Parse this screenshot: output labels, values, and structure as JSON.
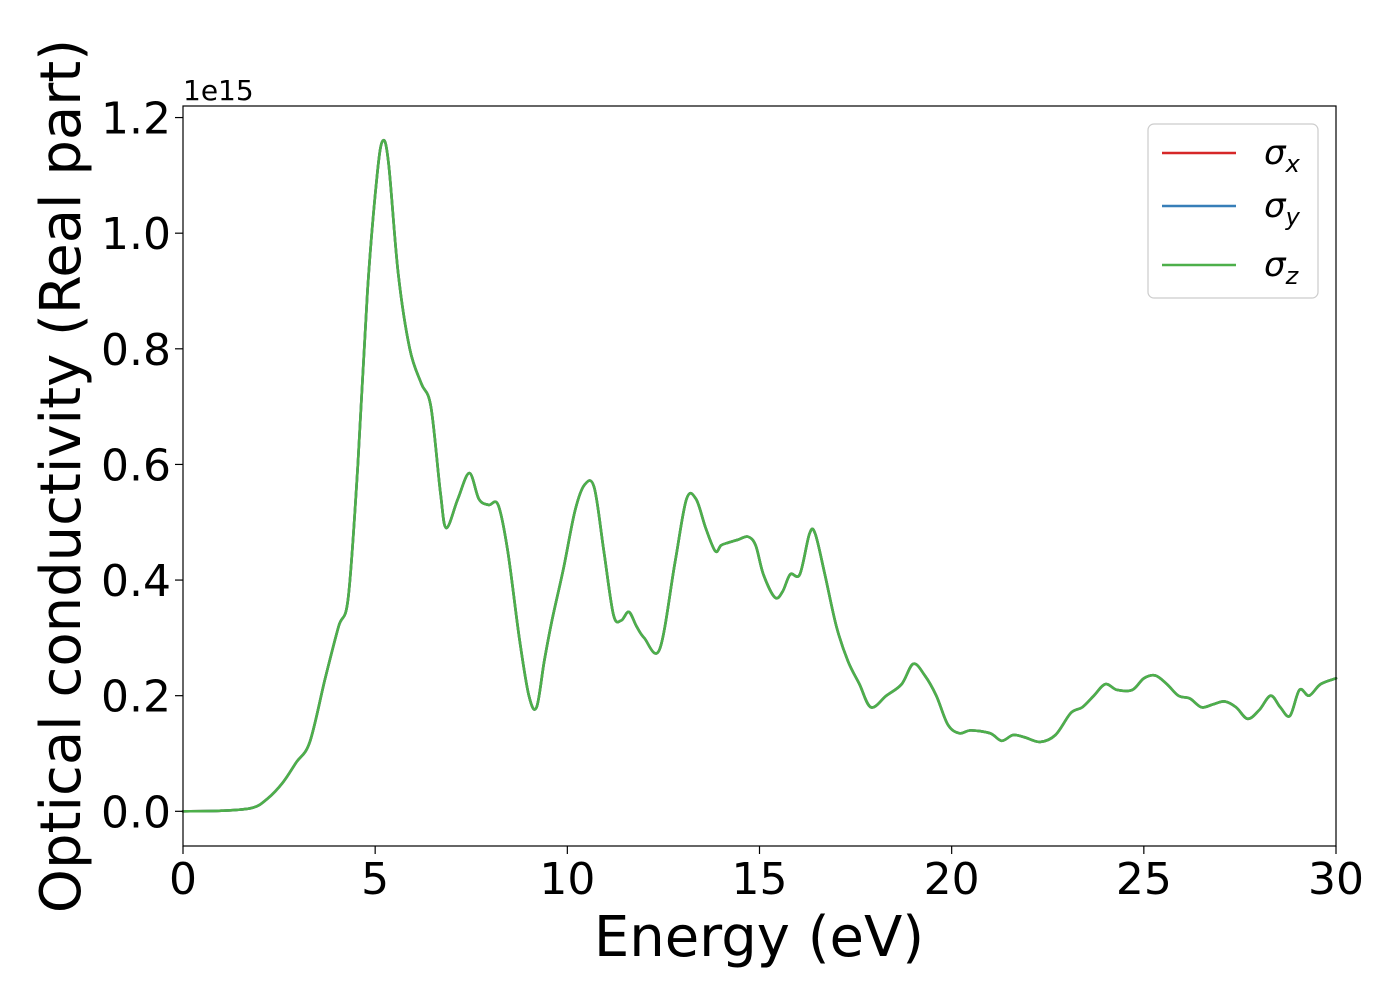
{
  "chart_data": {
    "type": "line",
    "xlabel": "Energy (eV)",
    "ylabel": "Optical conductivity (Real part)",
    "y_offset_label": "1e15",
    "xlim": [
      0,
      30
    ],
    "ylim": [
      -0.06,
      1.22
    ],
    "x_ticks": [
      0,
      5,
      10,
      15,
      20,
      25,
      30
    ],
    "x_tick_labels": [
      "0",
      "5",
      "10",
      "15",
      "20",
      "25",
      "30"
    ],
    "y_ticks": [
      0.0,
      0.2,
      0.4,
      0.6,
      0.8,
      1.0,
      1.2
    ],
    "y_tick_labels": [
      "0.0",
      "0.2",
      "0.4",
      "0.6",
      "0.8",
      "1.0",
      "1.2"
    ],
    "grid": false,
    "legend_position": "top-right",
    "x": [
      0,
      1,
      1.8,
      2.2,
      2.6,
      2.95,
      3.3,
      3.7,
      4.05,
      4.3,
      4.55,
      4.8,
      5.05,
      5.2,
      5.35,
      5.6,
      5.9,
      6.2,
      6.45,
      6.7,
      6.85,
      7.15,
      7.45,
      7.7,
      7.95,
      8.2,
      8.45,
      8.75,
      9.0,
      9.2,
      9.4,
      9.6,
      9.9,
      10.2,
      10.45,
      10.7,
      10.95,
      11.2,
      11.4,
      11.6,
      11.8,
      12.0,
      12.4,
      12.8,
      13.1,
      13.35,
      13.6,
      13.85,
      14.0,
      14.2,
      14.45,
      14.7,
      14.9,
      15.1,
      15.4,
      15.6,
      15.8,
      16.05,
      16.3,
      16.45,
      16.7,
      17.0,
      17.3,
      17.6,
      17.9,
      18.3,
      18.7,
      19.0,
      19.3,
      19.6,
      19.9,
      20.2,
      20.5,
      21.0,
      21.3,
      21.6,
      21.9,
      22.3,
      22.7,
      23.1,
      23.4,
      23.7,
      24.0,
      24.3,
      24.7,
      25.0,
      25.3,
      25.6,
      25.9,
      26.2,
      26.5,
      26.8,
      27.1,
      27.4,
      27.7,
      28.0,
      28.3,
      28.55,
      28.8,
      29.05,
      29.3,
      29.6,
      30.0
    ],
    "series": [
      {
        "name": "σx",
        "color": "#d62728",
        "values": [
          0.0,
          0.001,
          0.006,
          0.022,
          0.05,
          0.085,
          0.12,
          0.23,
          0.32,
          0.37,
          0.6,
          0.9,
          1.1,
          1.16,
          1.12,
          0.93,
          0.8,
          0.74,
          0.7,
          0.55,
          0.49,
          0.54,
          0.585,
          0.54,
          0.53,
          0.53,
          0.45,
          0.3,
          0.2,
          0.18,
          0.26,
          0.33,
          0.42,
          0.52,
          0.565,
          0.56,
          0.45,
          0.34,
          0.33,
          0.345,
          0.32,
          0.3,
          0.28,
          0.43,
          0.54,
          0.54,
          0.49,
          0.45,
          0.46,
          0.465,
          0.47,
          0.475,
          0.46,
          0.41,
          0.37,
          0.38,
          0.41,
          0.41,
          0.48,
          0.48,
          0.41,
          0.32,
          0.26,
          0.22,
          0.18,
          0.2,
          0.22,
          0.255,
          0.235,
          0.2,
          0.15,
          0.135,
          0.14,
          0.135,
          0.122,
          0.132,
          0.128,
          0.12,
          0.132,
          0.17,
          0.18,
          0.2,
          0.22,
          0.21,
          0.21,
          0.23,
          0.235,
          0.22,
          0.2,
          0.195,
          0.18,
          0.185,
          0.19,
          0.18,
          0.16,
          0.175,
          0.2,
          0.18,
          0.165,
          0.21,
          0.2,
          0.22,
          0.23
        ]
      },
      {
        "name": "σy",
        "color": "#377eb8",
        "values": [
          0.0,
          0.001,
          0.006,
          0.022,
          0.05,
          0.085,
          0.12,
          0.23,
          0.32,
          0.37,
          0.6,
          0.9,
          1.1,
          1.16,
          1.12,
          0.93,
          0.8,
          0.74,
          0.7,
          0.55,
          0.49,
          0.54,
          0.585,
          0.54,
          0.53,
          0.53,
          0.45,
          0.3,
          0.2,
          0.18,
          0.26,
          0.33,
          0.42,
          0.52,
          0.565,
          0.56,
          0.45,
          0.34,
          0.33,
          0.345,
          0.32,
          0.3,
          0.28,
          0.43,
          0.54,
          0.54,
          0.49,
          0.45,
          0.46,
          0.465,
          0.47,
          0.475,
          0.46,
          0.41,
          0.37,
          0.38,
          0.41,
          0.41,
          0.48,
          0.48,
          0.41,
          0.32,
          0.26,
          0.22,
          0.18,
          0.2,
          0.22,
          0.255,
          0.235,
          0.2,
          0.15,
          0.135,
          0.14,
          0.135,
          0.122,
          0.132,
          0.128,
          0.12,
          0.132,
          0.17,
          0.18,
          0.2,
          0.22,
          0.21,
          0.21,
          0.23,
          0.235,
          0.22,
          0.2,
          0.195,
          0.18,
          0.185,
          0.19,
          0.18,
          0.16,
          0.175,
          0.2,
          0.18,
          0.165,
          0.21,
          0.2,
          0.22,
          0.23
        ]
      },
      {
        "name": "σz",
        "color": "#4daf4a",
        "values": [
          0.0,
          0.001,
          0.006,
          0.022,
          0.05,
          0.085,
          0.12,
          0.23,
          0.32,
          0.37,
          0.6,
          0.9,
          1.1,
          1.16,
          1.12,
          0.93,
          0.8,
          0.74,
          0.7,
          0.55,
          0.49,
          0.54,
          0.585,
          0.54,
          0.53,
          0.53,
          0.45,
          0.3,
          0.2,
          0.18,
          0.26,
          0.33,
          0.42,
          0.52,
          0.565,
          0.56,
          0.45,
          0.34,
          0.33,
          0.345,
          0.32,
          0.3,
          0.28,
          0.43,
          0.54,
          0.54,
          0.49,
          0.45,
          0.46,
          0.465,
          0.47,
          0.475,
          0.46,
          0.41,
          0.37,
          0.38,
          0.41,
          0.41,
          0.48,
          0.48,
          0.41,
          0.32,
          0.26,
          0.22,
          0.18,
          0.2,
          0.22,
          0.255,
          0.235,
          0.2,
          0.15,
          0.135,
          0.14,
          0.135,
          0.122,
          0.132,
          0.128,
          0.12,
          0.132,
          0.17,
          0.18,
          0.2,
          0.22,
          0.21,
          0.21,
          0.23,
          0.235,
          0.22,
          0.2,
          0.195,
          0.18,
          0.185,
          0.19,
          0.18,
          0.16,
          0.175,
          0.2,
          0.18,
          0.165,
          0.21,
          0.2,
          0.22,
          0.23
        ]
      }
    ],
    "legend": [
      {
        "symbol": "σ",
        "sub": "x"
      },
      {
        "symbol": "σ",
        "sub": "y"
      },
      {
        "symbol": "σ",
        "sub": "z"
      }
    ]
  }
}
